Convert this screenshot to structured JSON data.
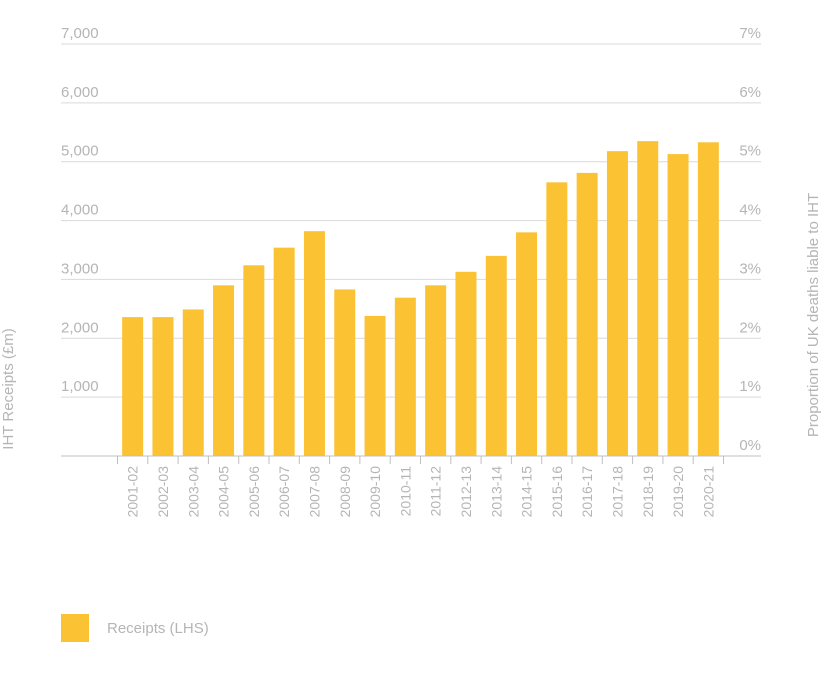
{
  "colors": {
    "bar": "#fbc334",
    "text": "#b5b5b5",
    "grid": "#d9d9d9",
    "axis": "#bfbfbf"
  },
  "chart_data": {
    "type": "bar",
    "title": "",
    "xlabel": "",
    "ylabel": "IHT Receipts (£m)",
    "ylabel_right": "Proportion of UK deaths liable to IHT",
    "ylim": [
      0,
      7000
    ],
    "yticks": [
      1000,
      2000,
      3000,
      4000,
      5000,
      6000,
      7000
    ],
    "ytick_labels": [
      "1,000",
      "2,000",
      "3,000",
      "4,000",
      "5,000",
      "6,000",
      "7,000"
    ],
    "ylim_right": [
      0,
      7
    ],
    "yticks_right_labels": [
      "0%",
      "1%",
      "2%",
      "3%",
      "4%",
      "5%",
      "6%",
      "7%"
    ],
    "grid": true,
    "categories": [
      "2001-02",
      "2002-03",
      "2003-04",
      "2004-05",
      "2005-06",
      "2006-07",
      "2007-08",
      "2008-09",
      "2009-10",
      "2010-11",
      "2011-12",
      "2012-13",
      "2013-14",
      "2014-15",
      "2015-16",
      "2016-17",
      "2017-18",
      "2018-19",
      "2019-20",
      "2020-21"
    ],
    "series": [
      {
        "name": "Receipts (LHS)",
        "values": [
          2360,
          2360,
          2490,
          2900,
          3240,
          3540,
          3820,
          2830,
          2380,
          2690,
          2900,
          3130,
          3400,
          3800,
          4650,
          4810,
          5180,
          5350,
          5130,
          5330
        ]
      }
    ],
    "legend_position": "bottom-left"
  }
}
